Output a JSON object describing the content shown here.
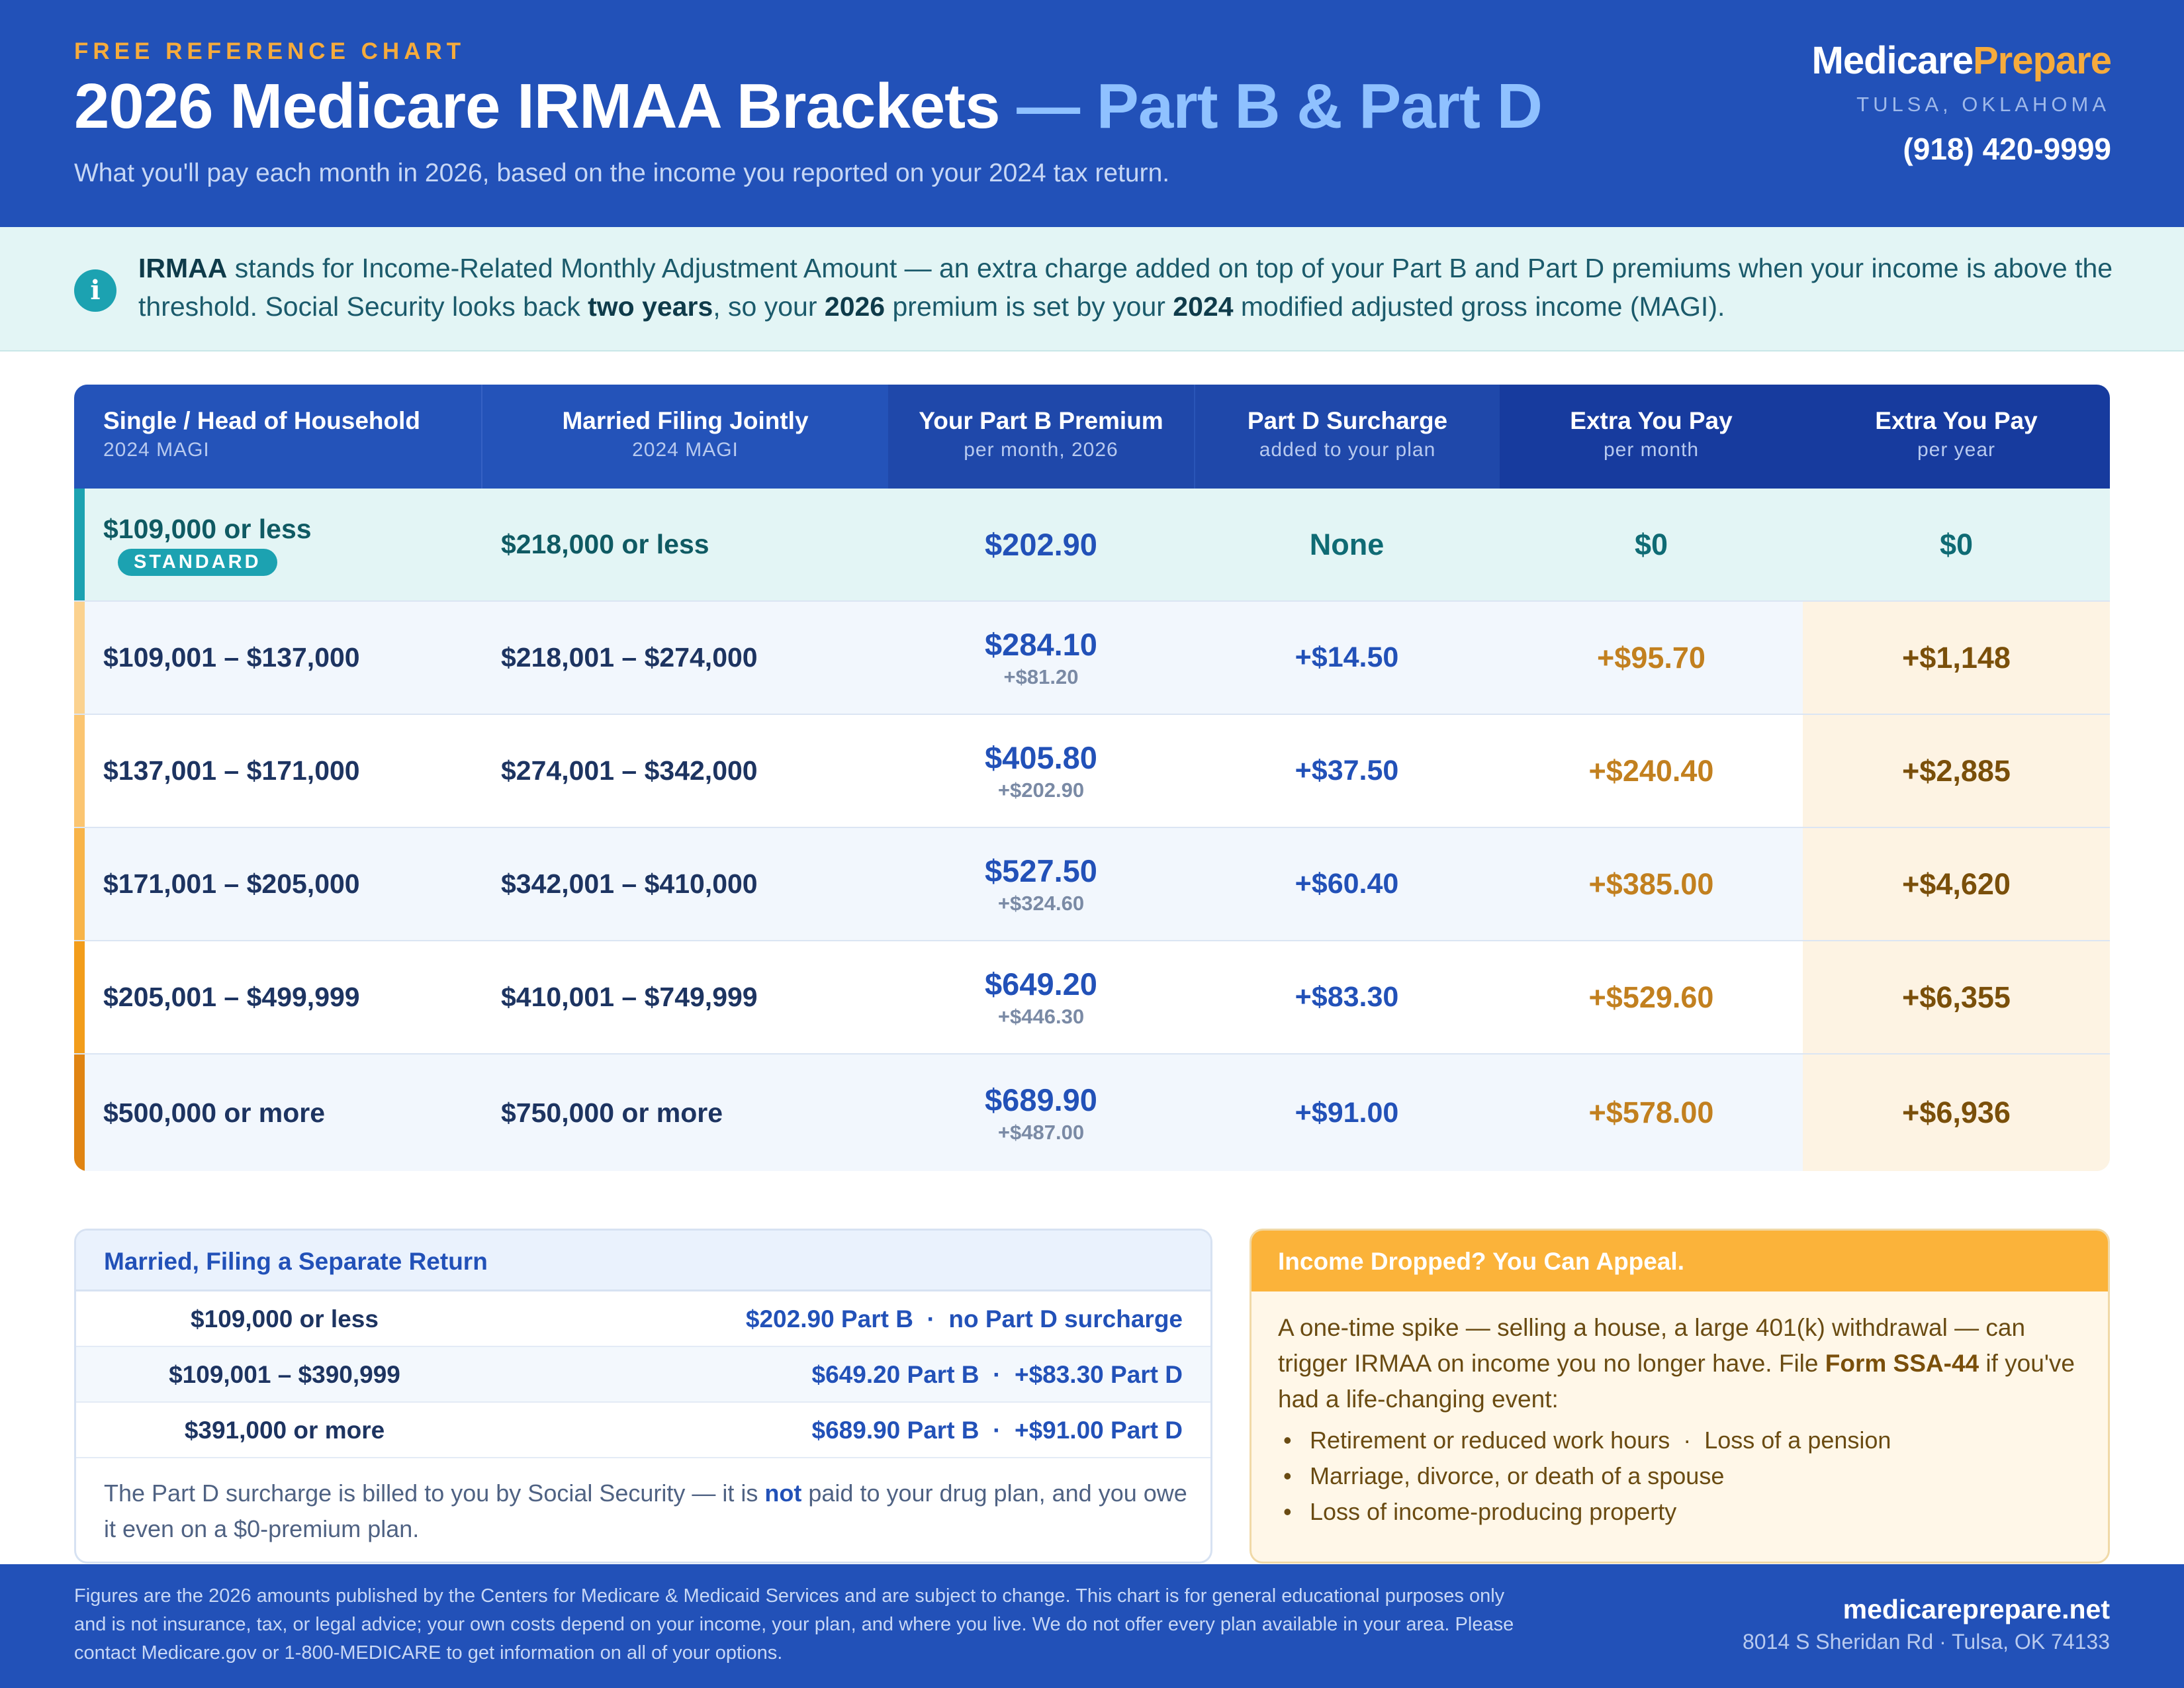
{
  "header": {
    "eyebrow": "FREE REFERENCE CHART",
    "title_main": "2026 Medicare IRMAA Brackets",
    "title_accent": "— Part B & Part D",
    "subtitle": "What you'll pay each month in 2026, based on the income you reported on your 2024 tax return.",
    "brand_part1": "Medicare",
    "brand_part2": "Prepare",
    "location": "TULSA, OKLAHOMA",
    "phone": "(918) 420-9999"
  },
  "info": {
    "icon": "info-icon",
    "t1": "IRMAA",
    "t2": " stands for Income-Related Monthly Adjustment Amount — an extra charge added on top of your Part B and Part D premiums when your income is above the threshold. Social Security looks back ",
    "t3": "two years",
    "t4": ", so your ",
    "t5": "2026",
    "t6": " premium is set by your ",
    "t7": "2024",
    "t8": " modified adjusted gross income (MAGI)."
  },
  "table": {
    "columns": [
      {
        "title": "Single / Head of Household",
        "sub": "2024 MAGI"
      },
      {
        "title": "Married Filing Jointly",
        "sub": "2024 MAGI"
      },
      {
        "title": "Your Part B Premium",
        "sub": "per month, 2026"
      },
      {
        "title": "Part D Surcharge",
        "sub": "added to your plan"
      },
      {
        "title": "Extra You Pay",
        "sub": "per month"
      },
      {
        "title": "Extra You Pay",
        "sub": "per year"
      }
    ],
    "standard_badge": "STANDARD",
    "rows": [
      {
        "single": "$109,000 or less",
        "joint": "$218,000 or less",
        "partb": "$202.90",
        "partb_extra": "",
        "partd": "None",
        "month": "$0",
        "year": "$0"
      },
      {
        "single": "$109,001 – $137,000",
        "joint": "$218,001 – $274,000",
        "partb": "$284.10",
        "partb_extra": "+$81.20",
        "partd": "+$14.50",
        "month": "+$95.70",
        "year": "+$1,148"
      },
      {
        "single": "$137,001 – $171,000",
        "joint": "$274,001 – $342,000",
        "partb": "$405.80",
        "partb_extra": "+$202.90",
        "partd": "+$37.50",
        "month": "+$240.40",
        "year": "+$2,885"
      },
      {
        "single": "$171,001 – $205,000",
        "joint": "$342,001 – $410,000",
        "partb": "$527.50",
        "partb_extra": "+$324.60",
        "partd": "+$60.40",
        "month": "+$385.00",
        "year": "+$4,620"
      },
      {
        "single": "$205,001 – $499,999",
        "joint": "$410,001 – $749,999",
        "partb": "$649.20",
        "partb_extra": "+$446.30",
        "partd": "+$83.30",
        "month": "+$529.60",
        "year": "+$6,355"
      },
      {
        "single": "$500,000 or more",
        "joint": "$750,000 or more",
        "partb": "$689.90",
        "partb_extra": "+$487.00",
        "partd": "+$91.00",
        "month": "+$578.00",
        "year": "+$6,936"
      }
    ],
    "tier_colors": [
      "#1ca2b1",
      "#fbd28f",
      "#fbc571",
      "#f8b448",
      "#f29d1b",
      "#e08412"
    ]
  },
  "mfs": {
    "title": "Married, Filing a Separate Return",
    "rows": [
      {
        "income": "$109,000 or less",
        "value": "$202.90 Part B  ·  no Part D surcharge"
      },
      {
        "income": "$109,001 – $390,999",
        "value": "$649.20 Part B  ·  +$83.30 Part D"
      },
      {
        "income": "$391,000 or more",
        "value": "$689.90 Part B  ·  +$91.00 Part D"
      }
    ],
    "note1": "The Part D surcharge is billed to you by Social Security — it is ",
    "note2": "not",
    "note3": " paid to your drug plan, and you owe it even on a $0-premium plan."
  },
  "appeal": {
    "title": "Income Dropped? You Can Appeal.",
    "body1": "A one-time spike — selling a house, a large 401(k) withdrawal — can trigger IRMAA on income you no longer have. File ",
    "body2": "Form SSA-44",
    "body3": " if you've had a life-changing event:",
    "items": [
      "Retirement or reduced work hours  ·  Loss of a pension",
      "Marriage, divorce, or death of a spouse",
      "Loss of income-producing property"
    ]
  },
  "footer": {
    "disclaimer": "Figures are the 2026 amounts published by the Centers for Medicare & Medicaid Services and are subject to change. This chart is for general educational purposes only and is not insurance, tax, or legal advice; your own costs depend on your income, your plan, and where you live. We do not offer every plan available in your area. Please contact Medicare.gov or 1-800-MEDICARE to get information on all of your options.",
    "site": "medicareprepare.net",
    "address": "8014 S Sheridan Rd · Tulsa, OK 74133"
  }
}
